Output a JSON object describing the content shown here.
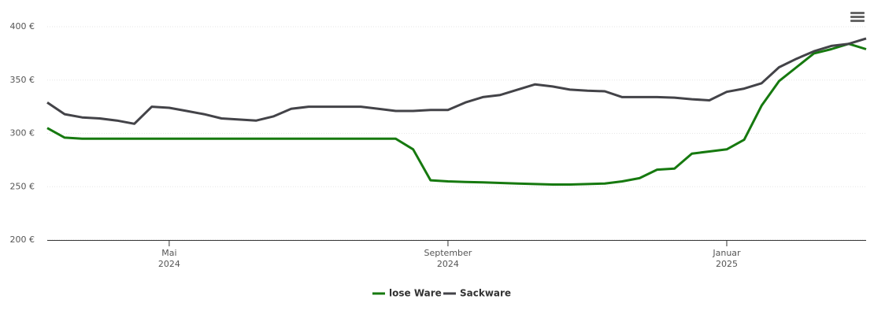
{
  "chart_data": {
    "type": "line",
    "x": [
      "2024-03",
      "2024-03",
      "2024-03",
      "2024-04",
      "2024-04",
      "2024-04",
      "2024-04",
      "2024-05",
      "2024-05",
      "2024-05",
      "2024-05",
      "2024-06",
      "2024-06",
      "2024-06",
      "2024-06",
      "2024-07",
      "2024-07",
      "2024-07",
      "2024-07",
      "2024-08",
      "2024-08",
      "2024-08",
      "2024-08",
      "2024-09",
      "2024-09",
      "2024-09",
      "2024-09",
      "2024-10",
      "2024-10",
      "2024-10",
      "2024-10",
      "2024-11",
      "2024-11",
      "2024-11",
      "2024-11",
      "2024-12",
      "2024-12",
      "2024-12",
      "2024-12",
      "2025-01",
      "2025-01",
      "2025-01",
      "2025-01",
      "2025-02",
      "2025-02",
      "2025-02",
      "2025-03",
      "2025-03"
    ],
    "series": [
      {
        "name": "lose Ware",
        "color": "#16790f",
        "values": [
          305,
          296,
          295,
          295,
          295,
          295,
          295,
          295,
          295,
          295,
          295,
          295,
          295,
          295,
          295,
          295,
          295,
          295,
          295,
          295,
          295,
          285,
          256,
          255,
          254.5,
          254,
          253.5,
          253,
          252.5,
          252,
          252,
          252.5,
          253,
          255,
          258,
          266,
          267,
          281,
          283,
          285,
          294,
          326,
          349,
          362,
          375,
          379,
          384,
          379
        ]
      },
      {
        "name": "Sackware",
        "color": "#434348",
        "values": [
          329,
          318,
          315,
          314,
          312,
          309,
          325,
          324,
          321,
          318,
          314,
          313,
          312,
          316,
          323,
          325,
          325,
          325,
          325,
          323,
          321,
          321,
          322,
          322,
          329,
          334,
          336,
          341,
          346,
          344,
          341,
          340,
          339.5,
          334,
          334,
          334,
          333.5,
          332,
          331,
          339,
          342,
          347,
          362,
          370,
          377,
          382,
          384,
          389
        ]
      }
    ],
    "ylim": [
      200,
      400
    ],
    "yticks": [
      {
        "value": 200,
        "label": "200 €"
      },
      {
        "value": 250,
        "label": "250 €"
      },
      {
        "value": 300,
        "label": "300 €"
      },
      {
        "value": 350,
        "label": "350 €"
      },
      {
        "value": 400,
        "label": "400 €"
      }
    ],
    "xticks": [
      {
        "value": "2024-05",
        "label": [
          "Mai",
          "2024"
        ]
      },
      {
        "value": "2024-09",
        "label": [
          "September",
          "2024"
        ]
      },
      {
        "value": "2025-01",
        "label": [
          "Januar",
          "2025"
        ]
      }
    ],
    "grid": true,
    "legend": "bottom"
  }
}
